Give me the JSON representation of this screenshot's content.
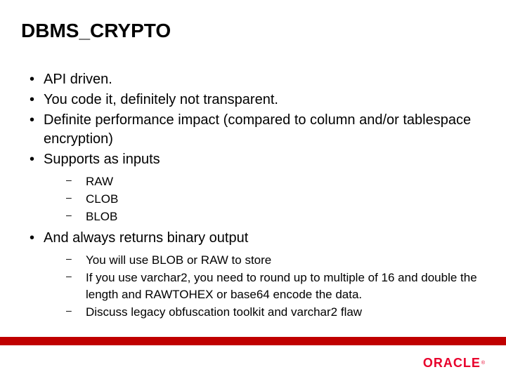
{
  "title": "DBMS_CRYPTO",
  "bullets": [
    {
      "text": "API driven."
    },
    {
      "text": "You code it, definitely not transparent."
    },
    {
      "text": "Definite performance impact (compared to column and/or tablespace encryption)"
    },
    {
      "text": "Supports as inputs",
      "sub": [
        "RAW",
        "CLOB",
        "BLOB"
      ]
    },
    {
      "text": "And always returns binary output",
      "sub": [
        "You will use BLOB or RAW to store",
        "If you use varchar2, you need to round up to multiple of 16 and double the length and RAWTOHEX or base64 encode the data.",
        "Discuss legacy obfuscation toolkit and varchar2 flaw"
      ]
    }
  ],
  "logo": {
    "text": "ORACLE",
    "reg": "®",
    "color": "#e8002b"
  },
  "accent_bar_color": "#c00000",
  "background_color": "#ffffff"
}
